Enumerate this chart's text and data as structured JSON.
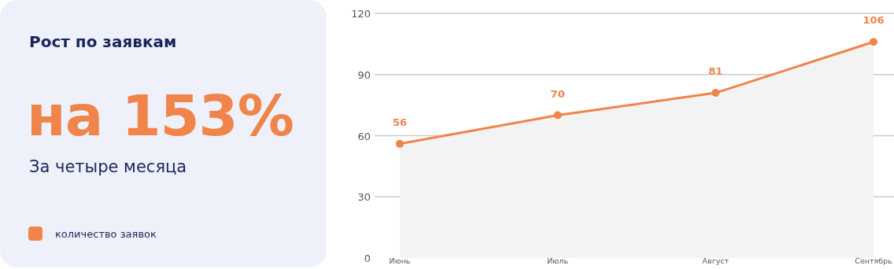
{
  "chart_data": {
    "type": "area",
    "title": "Рост по заявкам",
    "subtitle": "За четыре месяца",
    "annotations": [
      "на 153%"
    ],
    "categories": [
      "Июнь",
      "Июль",
      "Август",
      "Сентябрь"
    ],
    "series": [
      {
        "name": "количество заявок",
        "color": "#f0844a",
        "values": [
          56,
          70,
          81,
          106
        ]
      }
    ],
    "ylim": [
      0,
      120
    ],
    "yticks": [
      0,
      30,
      60,
      90,
      120
    ],
    "grid": "y",
    "legend": "left",
    "marker": "circle",
    "data_labels": true
  }
}
